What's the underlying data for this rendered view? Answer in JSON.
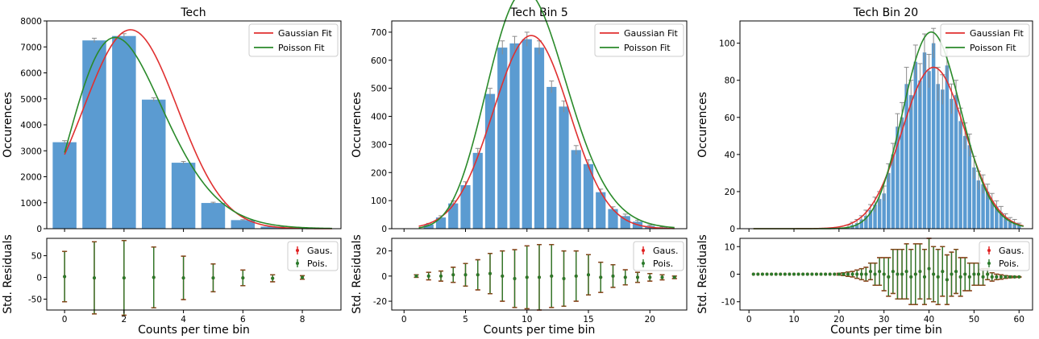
{
  "colors": {
    "bar": "#5b9bd1",
    "bar_err": "#8c8c8c",
    "gaussian": "#e03030",
    "poisson": "#2a8a2a",
    "resid_gaus": "#e02020",
    "resid_pois": "#2a7a2a",
    "axis": "#000000"
  },
  "legend": {
    "gaussian": "Gaussian Fit",
    "poisson": "Poisson Fit",
    "gaus_short": "Gaus.",
    "pois_short": "Pois."
  },
  "chart_data": [
    {
      "type": "bar",
      "title": "Tech",
      "xlabel": "Counts per time bin",
      "ylabel": "Occurences",
      "resid_ylabel": "Std. Residuals",
      "xlim": [
        -0.6,
        9.3
      ],
      "ylim": [
        0,
        8000
      ],
      "yticks": [
        0,
        1000,
        2000,
        3000,
        4000,
        5000,
        6000,
        7000,
        8000
      ],
      "xticks": [
        0,
        2,
        4,
        6,
        8
      ],
      "bar_width": 0.8,
      "x": [
        0,
        1,
        2,
        3,
        4,
        5,
        6,
        7,
        8
      ],
      "values": [
        3330,
        7250,
        7420,
        4970,
        2540,
        990,
        330,
        80,
        20
      ],
      "errors": [
        60,
        85,
        90,
        70,
        50,
        30,
        18,
        9,
        4
      ],
      "gaussian_fit": {
        "amp": 7660,
        "mu": 2.22,
        "sigma": 1.58,
        "x_range": [
          0,
          9
        ]
      },
      "poisson_fit": {
        "lambda": 2.22,
        "scale": 27000,
        "x_range": [
          0,
          9
        ]
      },
      "residuals": {
        "ylim": [
          -75,
          90
        ],
        "yticks": [
          -50,
          0,
          50
        ],
        "x": [
          0,
          1,
          2,
          3,
          4,
          5,
          6,
          7,
          8
        ],
        "gaus_y": [
          2,
          -1,
          -1,
          0,
          -1,
          -1,
          -1,
          -2,
          0
        ],
        "gaus_err": [
          58,
          83,
          86,
          70,
          50,
          32,
          18,
          8,
          4
        ],
        "pois_y": [
          2,
          -1,
          -1,
          0,
          -1,
          -1,
          -1,
          -2,
          0
        ],
        "pois_err": [
          58,
          83,
          86,
          70,
          50,
          32,
          18,
          8,
          4
        ]
      },
      "legend_position": "top-right"
    },
    {
      "type": "bar",
      "title": "Tech Bin 5",
      "xlabel": "Counts per time bin",
      "ylabel": "Occurences",
      "resid_ylabel": "Std. Residuals",
      "xlim": [
        -1,
        23
      ],
      "ylim": [
        0,
        740
      ],
      "yticks": [
        0,
        100,
        200,
        300,
        400,
        500,
        600,
        700
      ],
      "xticks": [
        0,
        5,
        10,
        15,
        20
      ],
      "bar_width": 0.8,
      "x": [
        2,
        3,
        4,
        5,
        6,
        7,
        8,
        9,
        10,
        11,
        12,
        13,
        14,
        15,
        16,
        17,
        18,
        19,
        20,
        21
      ],
      "values": [
        15,
        40,
        90,
        155,
        270,
        480,
        645,
        660,
        675,
        645,
        505,
        435,
        280,
        230,
        130,
        70,
        45,
        25,
        10,
        5
      ],
      "errors": [
        4,
        6,
        9,
        12,
        16,
        20,
        24,
        25,
        25,
        24,
        21,
        20,
        16,
        15,
        11,
        8,
        7,
        5,
        3,
        2
      ],
      "gaussian_fit": {
        "amp": 688,
        "mu": 10.35,
        "sigma": 3.1,
        "x_range": [
          1.2,
          22
        ]
      },
      "poisson_fit": {
        "lambda": 10.35,
        "scale": 6800,
        "x_range": [
          1.2,
          22
        ]
      },
      "residuals": {
        "ylim": [
          -27,
          30
        ],
        "yticks": [
          -20,
          0,
          20
        ],
        "x": [
          1,
          2,
          3,
          4,
          5,
          6,
          7,
          8,
          9,
          10,
          11,
          12,
          13,
          14,
          15,
          16,
          17,
          18,
          19,
          20,
          21,
          22
        ],
        "gaus_y": [
          0,
          0,
          0,
          1,
          1,
          1,
          2,
          0,
          -2,
          -1,
          -1,
          0,
          -2,
          0,
          1,
          -1,
          0,
          -1,
          -1,
          -1,
          -1,
          -1
        ],
        "gaus_err": [
          1,
          3,
          4,
          6,
          9,
          12,
          16,
          20,
          23,
          25,
          26,
          25,
          22,
          20,
          16,
          12,
          9,
          6,
          4,
          3,
          2,
          1
        ],
        "pois_y": [
          0,
          0,
          0,
          1,
          1,
          1,
          2,
          0,
          -2,
          -1,
          -1,
          0,
          -2,
          0,
          1,
          -1,
          0,
          -1,
          -1,
          -1,
          -1,
          -1
        ],
        "pois_err": [
          1,
          3,
          4,
          6,
          9,
          12,
          16,
          20,
          23,
          25,
          26,
          25,
          22,
          20,
          16,
          12,
          9,
          6,
          4,
          3,
          2,
          1
        ]
      },
      "legend_position": "top-right"
    },
    {
      "type": "bar",
      "title": "Tech Bin 20",
      "xlabel": "Counts per time bin",
      "ylabel": "Occurences",
      "resid_ylabel": "Std. Residuals",
      "xlim": [
        -2,
        63
      ],
      "ylim": [
        0,
        112
      ],
      "yticks": [
        0,
        20,
        40,
        60,
        80,
        100
      ],
      "xticks": [
        0,
        10,
        20,
        30,
        40,
        50,
        60
      ],
      "bar_width": 0.8,
      "x": [
        22,
        23,
        24,
        25,
        26,
        27,
        28,
        29,
        30,
        31,
        32,
        33,
        34,
        35,
        36,
        37,
        38,
        39,
        40,
        41,
        42,
        43,
        44,
        45,
        46,
        47,
        48,
        49,
        50,
        51,
        52,
        53,
        54,
        55,
        56,
        57,
        58,
        59,
        60
      ],
      "values": [
        1,
        2,
        3,
        5,
        7,
        10,
        13,
        16,
        19,
        30,
        40,
        55,
        60,
        78,
        72,
        90,
        80,
        95,
        85,
        100,
        78,
        75,
        88,
        70,
        72,
        58,
        50,
        45,
        33,
        26,
        24,
        20,
        15,
        12,
        9,
        6,
        4,
        3,
        2
      ],
      "errors": [
        1,
        1.5,
        2,
        2,
        3,
        3,
        4,
        4,
        4,
        5,
        6,
        7,
        8,
        9,
        8,
        9,
        9,
        10,
        9,
        8,
        9,
        8,
        9,
        8,
        8,
        7,
        7,
        6,
        6,
        5,
        5,
        4,
        4,
        3,
        3,
        2,
        2,
        2,
        1
      ],
      "gaussian_fit": {
        "amp": 87,
        "mu": 41,
        "sigma": 7.0,
        "x_range": [
          1,
          61
        ]
      },
      "poisson_fit": {
        "lambda": 41,
        "scale": 1700,
        "x_range": [
          1,
          61
        ]
      },
      "residuals": {
        "ylim": [
          -13,
          13
        ],
        "yticks": [
          -10,
          0,
          10
        ],
        "x": [
          1,
          2,
          3,
          4,
          5,
          6,
          7,
          8,
          9,
          10,
          11,
          12,
          13,
          14,
          15,
          16,
          17,
          18,
          19,
          20,
          21,
          22,
          23,
          24,
          25,
          26,
          27,
          28,
          29,
          30,
          31,
          32,
          33,
          34,
          35,
          36,
          37,
          38,
          39,
          40,
          41,
          42,
          43,
          44,
          45,
          46,
          47,
          48,
          49,
          50,
          51,
          52,
          53,
          54,
          55,
          56,
          57,
          58,
          59,
          60
        ],
        "gaus_y": [
          0,
          0,
          0,
          0,
          0,
          0,
          0,
          0,
          0,
          0,
          0,
          0,
          0,
          0,
          0,
          0,
          0,
          0,
          0,
          0,
          0,
          0,
          0,
          0,
          0,
          0,
          1,
          0,
          1,
          0,
          -1,
          1,
          0,
          0,
          1,
          -1,
          0,
          1,
          -1,
          2,
          0,
          -1,
          1,
          -2,
          0,
          1,
          -1,
          0,
          -1,
          0,
          0,
          -1,
          0,
          -1,
          -1,
          -1,
          -1,
          -1,
          -1,
          -1
        ],
        "gaus_err": [
          0,
          0,
          0,
          0,
          0,
          0,
          0,
          0,
          0,
          0,
          0,
          0,
          0,
          0,
          0,
          0,
          0,
          0,
          0,
          0.3,
          0.5,
          0.8,
          1,
          1.5,
          2,
          2.5,
          3,
          4,
          5,
          6,
          7,
          8,
          9,
          9,
          10,
          10,
          11,
          10,
          10,
          11,
          10,
          10,
          9,
          9,
          8,
          8,
          7,
          6,
          5,
          4,
          4,
          3,
          2,
          1.5,
          1,
          0.8,
          0.5,
          0.3,
          0.2,
          0.1
        ],
        "pois_y": [
          0,
          0,
          0,
          0,
          0,
          0,
          0,
          0,
          0,
          0,
          0,
          0,
          0,
          0,
          0,
          0,
          0,
          0,
          0,
          0,
          0,
          0,
          0,
          0,
          0,
          0,
          1,
          0,
          1,
          0,
          -1,
          1,
          0,
          0,
          1,
          -1,
          0,
          1,
          -1,
          2,
          0,
          -1,
          1,
          -2,
          0,
          1,
          -1,
          0,
          -1,
          0,
          0,
          -1,
          0,
          -1,
          -1,
          -1,
          -1,
          -1,
          -1,
          -1
        ],
        "pois_err": [
          0,
          0,
          0,
          0,
          0,
          0,
          0,
          0,
          0,
          0,
          0,
          0,
          0,
          0,
          0,
          0,
          0,
          0,
          0,
          0.3,
          0.5,
          0.8,
          1,
          1.5,
          2,
          2.5,
          3,
          4,
          5,
          6,
          7,
          8,
          9,
          9,
          10,
          10,
          11,
          10,
          10,
          11,
          10,
          10,
          9,
          9,
          8,
          8,
          7,
          6,
          5,
          4,
          4,
          3,
          2,
          1.5,
          1,
          0.8,
          0.5,
          0.3,
          0.2,
          0.1
        ]
      },
      "legend_position": "top-right"
    }
  ]
}
